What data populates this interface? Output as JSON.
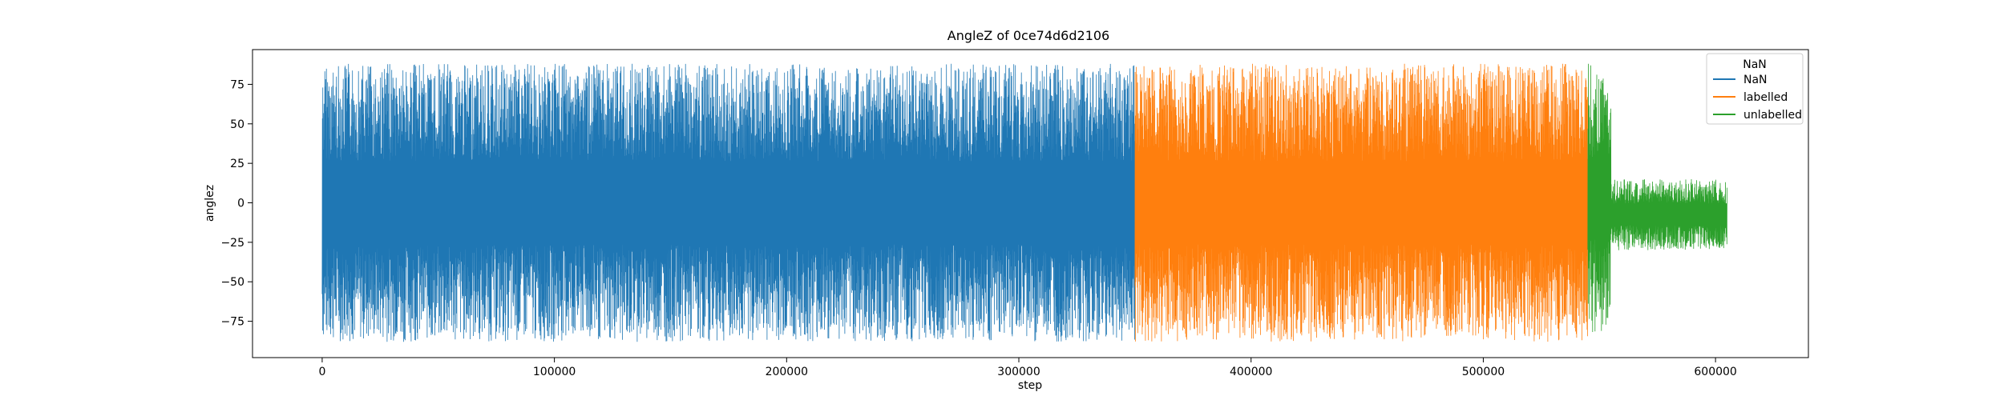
{
  "chart_data": {
    "type": "line",
    "title": "AngleZ of 0ce74d6d2106",
    "xlabel": "step",
    "ylabel": "anglez",
    "xlim": [
      -30000,
      640000
    ],
    "ylim": [
      -98,
      97
    ],
    "xticks": [
      0,
      100000,
      200000,
      300000,
      400000,
      500000,
      600000
    ],
    "xtick_labels": [
      "0",
      "100000",
      "200000",
      "300000",
      "400000",
      "500000",
      "600000"
    ],
    "yticks": [
      -75,
      -50,
      -25,
      0,
      25,
      50,
      75
    ],
    "ytick_labels": [
      "−75",
      "−50",
      "−25",
      "0",
      "25",
      "50",
      "75"
    ],
    "grid": false,
    "legend": {
      "title": "NaN",
      "placement": "top-right",
      "entries": [
        "NaN",
        "labelled",
        "unlabelled"
      ]
    },
    "series": [
      {
        "name": "NaN",
        "color": "#1f77b4",
        "x_range": [
          0,
          350000
        ],
        "y_min": -88,
        "y_max": 88,
        "pattern": "dense oscillation between roughly -80 and 85 throughout"
      },
      {
        "name": "labelled",
        "color": "#ff7f0e",
        "x_range": [
          350000,
          545000
        ],
        "y_min": -88,
        "y_max": 88,
        "pattern": "dense oscillation between roughly -85 and 85 with lighter gaps"
      },
      {
        "name": "unlabelled",
        "color": "#2ca02c",
        "x_range": [
          545000,
          605000
        ],
        "y_min": -82,
        "y_max": 88,
        "pattern": "wide oscillation until ~555000 then narrow band between -30 and 15"
      }
    ]
  }
}
